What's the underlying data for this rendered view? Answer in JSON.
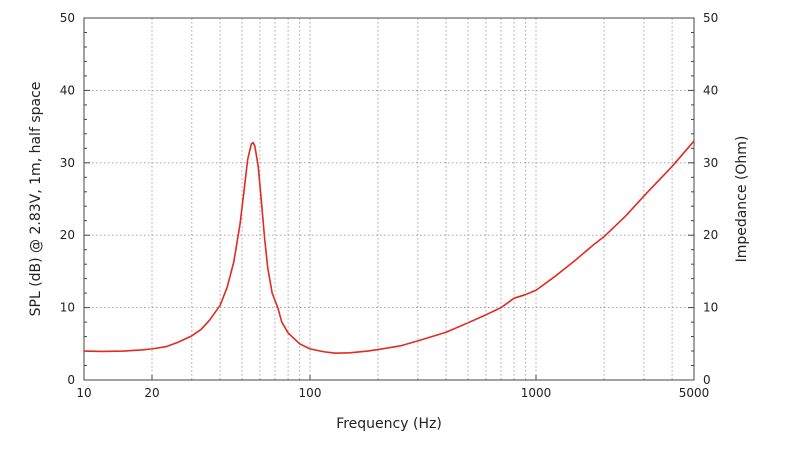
{
  "chart_data": {
    "type": "line",
    "title": "",
    "xlabel": "Frequency (Hz)",
    "ylabel_left": "SPL (dB) @ 2.83V, 1m, half space",
    "ylabel_right": "Impedance (Ohm)",
    "x_scale": "log",
    "xlim": [
      10,
      5000
    ],
    "ylim": [
      0,
      50
    ],
    "x_ticks": [
      "10",
      "20",
      "100",
      "1000",
      "5000"
    ],
    "y_ticks_left": [
      "0",
      "10",
      "20",
      "30",
      "40",
      "50"
    ],
    "y_ticks_right": [
      "0",
      "10",
      "20",
      "30",
      "40",
      "50"
    ],
    "grid": true,
    "series": [
      {
        "axis": "right",
        "color": "#e02b20",
        "points": [
          [
            10,
            4.0
          ],
          [
            12,
            3.95
          ],
          [
            15,
            4.0
          ],
          [
            18,
            4.15
          ],
          [
            20,
            4.3
          ],
          [
            23,
            4.6
          ],
          [
            26,
            5.2
          ],
          [
            30,
            6.1
          ],
          [
            33,
            7.0
          ],
          [
            36,
            8.3
          ],
          [
            40,
            10.3
          ],
          [
            43,
            12.8
          ],
          [
            46,
            16.3
          ],
          [
            49,
            21.5
          ],
          [
            51,
            26.0
          ],
          [
            53,
            30.5
          ],
          [
            55,
            32.6
          ],
          [
            56,
            32.8
          ],
          [
            57,
            32.3
          ],
          [
            59,
            29.5
          ],
          [
            61,
            24.5
          ],
          [
            63,
            19.5
          ],
          [
            65,
            15.5
          ],
          [
            68,
            12.0
          ],
          [
            72,
            10.0
          ],
          [
            75,
            8.0
          ],
          [
            80,
            6.5
          ],
          [
            90,
            5.0
          ],
          [
            100,
            4.3
          ],
          [
            115,
            3.9
          ],
          [
            130,
            3.7
          ],
          [
            150,
            3.75
          ],
          [
            180,
            4.0
          ],
          [
            200,
            4.2
          ],
          [
            250,
            4.7
          ],
          [
            300,
            5.4
          ],
          [
            400,
            6.6
          ],
          [
            500,
            7.9
          ],
          [
            600,
            9.0
          ],
          [
            700,
            10.0
          ],
          [
            800,
            11.3
          ],
          [
            900,
            11.8
          ],
          [
            1000,
            12.4
          ],
          [
            1200,
            14.2
          ],
          [
            1500,
            16.6
          ],
          [
            1800,
            18.7
          ],
          [
            2000,
            19.8
          ],
          [
            2500,
            22.7
          ],
          [
            3000,
            25.4
          ],
          [
            4000,
            29.5
          ],
          [
            5000,
            33.0
          ]
        ]
      }
    ]
  }
}
